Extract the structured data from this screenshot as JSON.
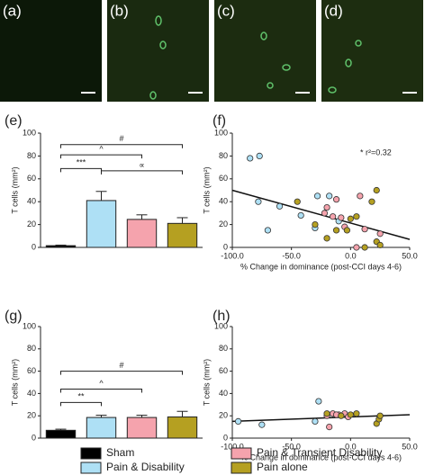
{
  "micrographs": [
    "(a)",
    "(b)",
    "(c)",
    "(d)"
  ],
  "legend": [
    {
      "name": "Sham",
      "color": "#000000"
    },
    {
      "name": "Pain & Disability",
      "color": "#aee0f5"
    },
    {
      "name": "Pain & Transient Disability",
      "color": "#f5a3ad"
    },
    {
      "name": "Pain alone",
      "color": "#b5a021"
    }
  ],
  "chart_data": [
    {
      "type": "bar",
      "label": "(e)",
      "ylabel": "T cells (mm²)",
      "ylim": [
        0,
        100
      ],
      "yticks": [
        0,
        20,
        40,
        60,
        80,
        100
      ],
      "values": [
        1.5,
        41,
        24.5,
        21
      ],
      "errors": [
        0.5,
        8,
        4,
        5
      ],
      "annotations": [
        "***",
        "^",
        "#",
        "∝"
      ]
    },
    {
      "type": "scatter",
      "label": "(f)",
      "ylabel": "T cells (mm²)",
      "xlabel": "% Change in dominance (post-CCI days 4-6)",
      "annotation": "* r²=0.32",
      "xlim": [
        -100,
        50
      ],
      "xticks": [
        {
          "value": -100,
          "label": "-100.0"
        },
        {
          "value": -50,
          "label": "-50.0"
        },
        {
          "value": 0,
          "label": "0.0"
        },
        {
          "value": 50,
          "label": "50.0"
        }
      ],
      "ylim": [
        0,
        100
      ],
      "yticks": [
        0,
        20,
        40,
        60,
        80,
        100
      ],
      "series": [
        {
          "color": "#aee0f5",
          "x": [
            -85,
            -77,
            -78,
            -70,
            -60,
            -42,
            -30,
            -28,
            -18,
            -10
          ],
          "y": [
            78,
            80,
            40,
            15,
            36,
            28,
            17,
            45,
            45,
            23
          ]
        },
        {
          "color": "#f5a3ad",
          "x": [
            -22,
            -20,
            -15,
            -12,
            -8,
            -5,
            5,
            8,
            12,
            25
          ],
          "y": [
            30,
            35,
            27,
            42,
            26,
            18,
            0,
            45,
            16,
            12
          ]
        },
        {
          "color": "#b5a021",
          "x": [
            -45,
            -30,
            -20,
            -12,
            -3,
            0,
            5,
            12,
            18,
            22,
            22,
            25
          ],
          "y": [
            40,
            20,
            8,
            15,
            15,
            25,
            27,
            0,
            40,
            50,
            5,
            2
          ]
        }
      ],
      "fit": {
        "x": [
          -100,
          50
        ],
        "y": [
          50,
          7
        ]
      }
    },
    {
      "type": "bar",
      "label": "(g)",
      "ylabel": "T cells (mm²)",
      "ylim": [
        0,
        100
      ],
      "yticks": [
        0,
        20,
        40,
        60,
        80,
        100
      ],
      "values": [
        7,
        18.5,
        18.5,
        19
      ],
      "errors": [
        1,
        2,
        2,
        5
      ],
      "annotations": [
        "**",
        "^",
        "#"
      ]
    },
    {
      "type": "scatter",
      "label": "(h)",
      "ylabel": "T cells (mm²)",
      "xlabel": "% Change in dominance (post-CCI days 4-6)",
      "xlim": [
        -100,
        50
      ],
      "xticks": [
        {
          "value": -100,
          "label": "-100.0"
        },
        {
          "value": -50,
          "label": "-50.0"
        },
        {
          "value": 0,
          "label": "0.0"
        },
        {
          "value": 50,
          "label": "50.0"
        }
      ],
      "ylim": [
        0,
        100
      ],
      "yticks": [
        0,
        20,
        40,
        60,
        80,
        100
      ],
      "series": [
        {
          "color": "#aee0f5",
          "x": [
            -95,
            -75,
            -27,
            -30
          ],
          "y": [
            15,
            12,
            33,
            15
          ]
        },
        {
          "color": "#f5a3ad",
          "x": [
            -20,
            -15,
            -10,
            -5,
            -2,
            -18,
            -12
          ],
          "y": [
            20,
            22,
            21,
            22,
            19,
            10,
            21
          ]
        },
        {
          "color": "#b5a021",
          "x": [
            -20,
            -8,
            0,
            5,
            22,
            24,
            25
          ],
          "y": [
            22,
            20,
            21,
            22,
            13,
            17,
            20
          ]
        }
      ],
      "fit": {
        "x": [
          -100,
          50
        ],
        "y": [
          15,
          21
        ]
      }
    }
  ]
}
